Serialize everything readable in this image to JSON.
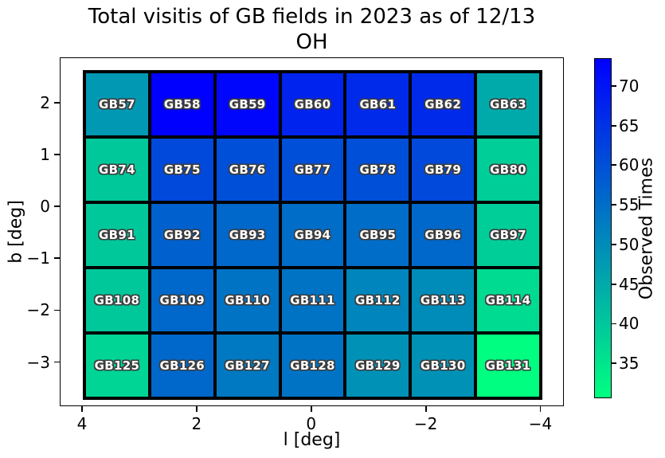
{
  "chart_data": {
    "type": "heatmap",
    "title_line1": "Total visitis of GB fields in 2023 as of 12/13",
    "title_line2": "OH",
    "xlabel": "l [deg]",
    "ylabel": "b [deg]",
    "x_range": [
      4.39,
      -4.41
    ],
    "y_range": [
      2.87,
      -3.85
    ],
    "x_ticks": [
      {
        "value": 4,
        "label": "4"
      },
      {
        "value": 2,
        "label": "2"
      },
      {
        "value": 0,
        "label": "0"
      },
      {
        "value": -2,
        "label": "−2"
      },
      {
        "value": -4,
        "label": "−4"
      }
    ],
    "y_ticks": [
      {
        "value": 2,
        "label": "2"
      },
      {
        "value": 1,
        "label": "1"
      },
      {
        "value": 0,
        "label": "0"
      },
      {
        "value": -1,
        "label": "−1"
      },
      {
        "value": -2,
        "label": "−2"
      },
      {
        "value": -3,
        "label": "−3"
      }
    ],
    "colormap": "winter_r",
    "vmin": 31,
    "vmax": 73,
    "grid_on": false,
    "colorbar": {
      "label": "Observed Times",
      "range": [
        73.5,
        30.6
      ],
      "ticks": [
        {
          "value": 70,
          "label": "70"
        },
        {
          "value": 65,
          "label": "65"
        },
        {
          "value": 60,
          "label": "60"
        },
        {
          "value": 55,
          "label": "55"
        },
        {
          "value": 50,
          "label": "50"
        },
        {
          "value": 45,
          "label": "45"
        },
        {
          "value": 40,
          "label": "40"
        },
        {
          "value": 35,
          "label": "35"
        }
      ]
    },
    "rows": [
      {
        "cells": [
          {
            "label": "GB57",
            "value": 48
          },
          {
            "label": "GB58",
            "value": 73
          },
          {
            "label": "GB59",
            "value": 72
          },
          {
            "label": "GB60",
            "value": 67
          },
          {
            "label": "GB61",
            "value": 66
          },
          {
            "label": "GB62",
            "value": 66
          },
          {
            "label": "GB63",
            "value": 45
          }
        ]
      },
      {
        "cells": [
          {
            "label": "GB74",
            "value": 40
          },
          {
            "label": "GB75",
            "value": 61
          },
          {
            "label": "GB76",
            "value": 60
          },
          {
            "label": "GB77",
            "value": 60
          },
          {
            "label": "GB78",
            "value": 60
          },
          {
            "label": "GB79",
            "value": 61
          },
          {
            "label": "GB80",
            "value": 39
          }
        ]
      },
      {
        "cells": [
          {
            "label": "GB91",
            "value": 40
          },
          {
            "label": "GB92",
            "value": 57
          },
          {
            "label": "GB93",
            "value": 56
          },
          {
            "label": "GB94",
            "value": 55
          },
          {
            "label": "GB95",
            "value": 55
          },
          {
            "label": "GB96",
            "value": 56
          },
          {
            "label": "GB97",
            "value": 39
          }
        ]
      },
      {
        "cells": [
          {
            "label": "GB108",
            "value": 40
          },
          {
            "label": "GB109",
            "value": 56
          },
          {
            "label": "GB110",
            "value": 54
          },
          {
            "label": "GB111",
            "value": 54
          },
          {
            "label": "GB112",
            "value": 51
          },
          {
            "label": "GB113",
            "value": 50
          },
          {
            "label": "GB114",
            "value": 37
          }
        ]
      },
      {
        "cells": [
          {
            "label": "GB125",
            "value": 38
          },
          {
            "label": "GB126",
            "value": 56
          },
          {
            "label": "GB127",
            "value": 53
          },
          {
            "label": "GB128",
            "value": 54
          },
          {
            "label": "GB129",
            "value": 49
          },
          {
            "label": "GB130",
            "value": 49
          },
          {
            "label": "GB131",
            "value": 31
          }
        ]
      }
    ]
  }
}
